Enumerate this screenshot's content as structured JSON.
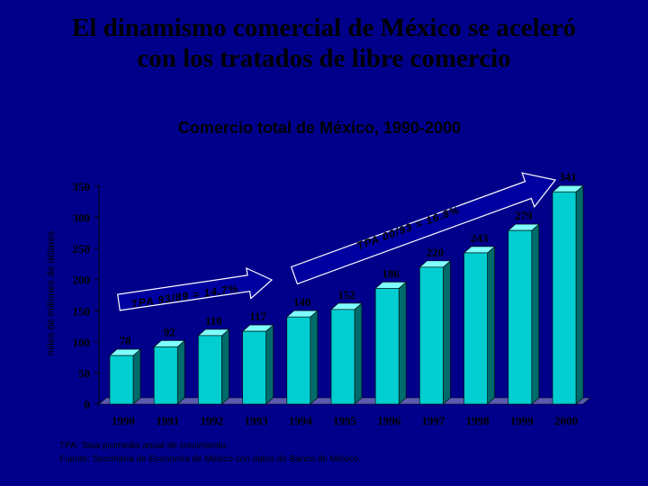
{
  "slide": {
    "title_line1": "El dinamismo comercial de México se aceleró",
    "title_line2": "con los tratados de libre comercio"
  },
  "footnotes": {
    "line1": "TPA: Tasa promedio anual de crecimiento.",
    "line2": "Fuente: Secretaría de Economía de México con datos de Banco de México."
  },
  "colors": {
    "background": "#00008B",
    "bar_front": "#00CED1",
    "bar_side": "#006B6B",
    "bar_top": "#7FFFFF",
    "floor": "#5A5AB0",
    "text": "#000000",
    "arrow": "#0000A0"
  },
  "chart_data": {
    "type": "bar",
    "title": "Comercio total de México, 1990-2000",
    "ylabel": "miles de millones de dólares",
    "xlabel": "",
    "categories": [
      "1990",
      "1991",
      "1992",
      "1993",
      "1994",
      "1995",
      "1996",
      "1997",
      "1998",
      "1999",
      "2000"
    ],
    "values": [
      78,
      92,
      110,
      117,
      140,
      152,
      186,
      220,
      243,
      279,
      341
    ],
    "ylim": [
      0,
      350
    ],
    "yticks": [
      0,
      50,
      100,
      150,
      200,
      250,
      300,
      350
    ],
    "grid": false,
    "annotations": [
      {
        "text": "TPA 93/89 = 14.7%"
      },
      {
        "text": "TPA 00/93 = 16.8%"
      }
    ]
  }
}
